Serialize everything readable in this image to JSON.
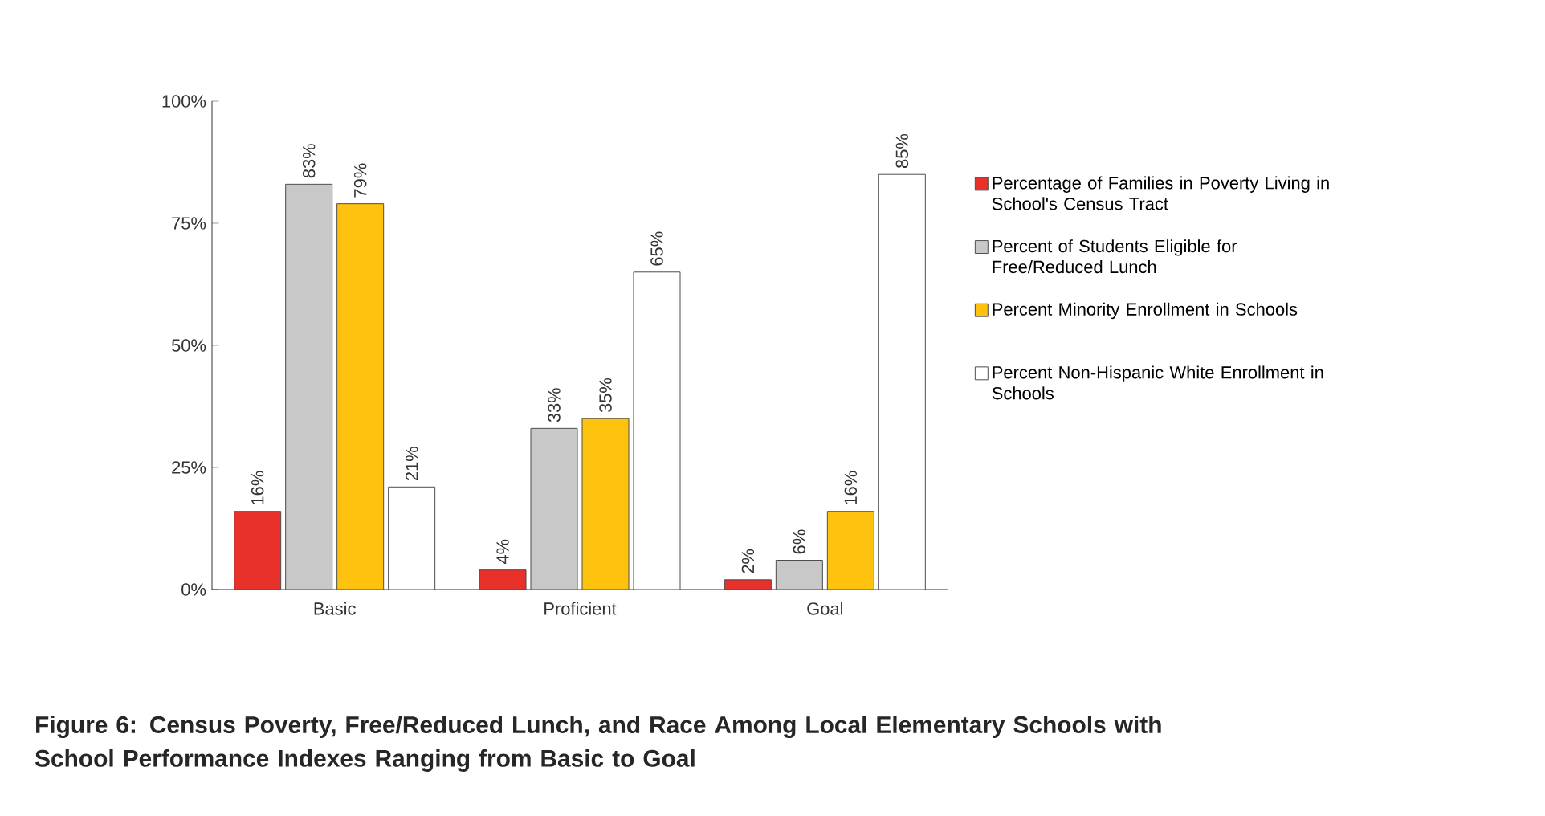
{
  "chart_data": {
    "type": "bar",
    "categories": [
      "Basic",
      "Proficient",
      "Goal"
    ],
    "series": [
      {
        "name": "Percentage of Families in Poverty Living in School's Census Tract",
        "color": "#e8312a",
        "values": [
          16,
          4,
          2
        ],
        "value_labels": [
          "16%",
          "4%",
          "2%"
        ]
      },
      {
        "name": "Percent of Students Eligible for Free/Reduced Lunch",
        "color": "#c8c8c8",
        "values": [
          83,
          33,
          6
        ],
        "value_labels": [
          "83%",
          "33%",
          "6%"
        ]
      },
      {
        "name": "Percent Minority Enrollment in Schools",
        "color": "#ffc20e",
        "values": [
          79,
          35,
          16
        ],
        "value_labels": [
          "79%",
          "35%",
          "16%"
        ]
      },
      {
        "name": "Percent Non-Hispanic White Enrollment in Schools",
        "color": "#ffffff",
        "values": [
          21,
          65,
          85
        ],
        "value_labels": [
          "21%",
          "65%",
          "85%"
        ]
      }
    ],
    "ylim": [
      0,
      100
    ],
    "yticks": [
      {
        "value": 0,
        "label": "0%"
      },
      {
        "value": 25,
        "label": "25%"
      },
      {
        "value": 50,
        "label": "50%"
      },
      {
        "value": 75,
        "label": "75%"
      },
      {
        "value": 100,
        "label": "100%"
      }
    ],
    "grid": false,
    "legend": "right",
    "annotations": [
      "Figure 6: Census Poverty, Free/Reduced Lunch, and Race Among Local Elementary Schools with School Performance Indexes Ranging from Basic to Goal"
    ]
  }
}
